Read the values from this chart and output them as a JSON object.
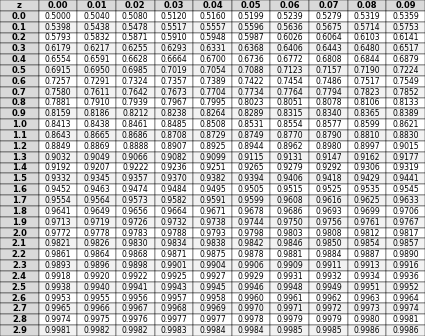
{
  "col_headers": [
    "z",
    "0.00",
    "0.01",
    "0.02",
    "0.03",
    "0.04",
    "0.05",
    "0.06",
    "0.07",
    "0.08",
    "0.09"
  ],
  "row_headers": [
    "0.0",
    "0.1",
    "0.2",
    "0.3",
    "0.4",
    "0.5",
    "0.6",
    "0.7",
    "0.8",
    "0.9",
    "1.0",
    "1.1",
    "1.2",
    "1.3",
    "1.4",
    "1.5",
    "1.6",
    "1.7",
    "1.8",
    "1.9",
    "2.0",
    "2.1",
    "2.2",
    "2.3",
    "2.4",
    "2.5",
    "2.6",
    "2.7",
    "2.8",
    "2.9"
  ],
  "table_data": [
    [
      0.5,
      0.504,
      0.508,
      0.512,
      0.516,
      0.5199,
      0.5239,
      0.5279,
      0.5319,
      0.5359
    ],
    [
      0.5398,
      0.5438,
      0.5478,
      0.5517,
      0.5557,
      0.5596,
      0.5636,
      0.5675,
      0.5714,
      0.5753
    ],
    [
      0.5793,
      0.5832,
      0.5871,
      0.591,
      0.5948,
      0.5987,
      0.6026,
      0.6064,
      0.6103,
      0.6141
    ],
    [
      0.6179,
      0.6217,
      0.6255,
      0.6293,
      0.6331,
      0.6368,
      0.6406,
      0.6443,
      0.648,
      0.6517
    ],
    [
      0.6554,
      0.6591,
      0.6628,
      0.6664,
      0.67,
      0.6736,
      0.6772,
      0.6808,
      0.6844,
      0.6879
    ],
    [
      0.6915,
      0.695,
      0.6985,
      0.7019,
      0.7054,
      0.7088,
      0.7123,
      0.7157,
      0.719,
      0.7224
    ],
    [
      0.7257,
      0.7291,
      0.7324,
      0.7357,
      0.7389,
      0.7422,
      0.7454,
      0.7486,
      0.7517,
      0.7549
    ],
    [
      0.758,
      0.7611,
      0.7642,
      0.7673,
      0.7704,
      0.7734,
      0.7764,
      0.7794,
      0.7823,
      0.7852
    ],
    [
      0.7881,
      0.791,
      0.7939,
      0.7967,
      0.7995,
      0.8023,
      0.8051,
      0.8078,
      0.8106,
      0.8133
    ],
    [
      0.8159,
      0.8186,
      0.8212,
      0.8238,
      0.8264,
      0.8289,
      0.8315,
      0.834,
      0.8365,
      0.8389
    ],
    [
      0.8413,
      0.8438,
      0.8461,
      0.8485,
      0.8508,
      0.8531,
      0.8554,
      0.8577,
      0.8599,
      0.8621
    ],
    [
      0.8643,
      0.8665,
      0.8686,
      0.8708,
      0.8729,
      0.8749,
      0.877,
      0.879,
      0.881,
      0.883
    ],
    [
      0.8849,
      0.8869,
      0.8888,
      0.8907,
      0.8925,
      0.8944,
      0.8962,
      0.898,
      0.8997,
      0.9015
    ],
    [
      0.9032,
      0.9049,
      0.9066,
      0.9082,
      0.9099,
      0.9115,
      0.9131,
      0.9147,
      0.9162,
      0.9177
    ],
    [
      0.9192,
      0.9207,
      0.9222,
      0.9236,
      0.9251,
      0.9265,
      0.9279,
      0.9292,
      0.9306,
      0.9319
    ],
    [
      0.9332,
      0.9345,
      0.9357,
      0.937,
      0.9382,
      0.9394,
      0.9406,
      0.9418,
      0.9429,
      0.9441
    ],
    [
      0.9452,
      0.9463,
      0.9474,
      0.9484,
      0.9495,
      0.9505,
      0.9515,
      0.9525,
      0.9535,
      0.9545
    ],
    [
      0.9554,
      0.9564,
      0.9573,
      0.9582,
      0.9591,
      0.9599,
      0.9608,
      0.9616,
      0.9625,
      0.9633
    ],
    [
      0.9641,
      0.9649,
      0.9656,
      0.9664,
      0.9671,
      0.9678,
      0.9686,
      0.9693,
      0.9699,
      0.9706
    ],
    [
      0.9713,
      0.9719,
      0.9726,
      0.9732,
      0.9738,
      0.9744,
      0.975,
      0.9756,
      0.9761,
      0.9767
    ],
    [
      0.9772,
      0.9778,
      0.9783,
      0.9788,
      0.9793,
      0.9798,
      0.9803,
      0.9808,
      0.9812,
      0.9817
    ],
    [
      0.9821,
      0.9826,
      0.983,
      0.9834,
      0.9838,
      0.9842,
      0.9846,
      0.985,
      0.9854,
      0.9857
    ],
    [
      0.9861,
      0.9864,
      0.9868,
      0.9871,
      0.9875,
      0.9878,
      0.9881,
      0.9884,
      0.9887,
      0.989
    ],
    [
      0.9893,
      0.9896,
      0.9898,
      0.9901,
      0.9904,
      0.9906,
      0.9909,
      0.9911,
      0.9913,
      0.9916
    ],
    [
      0.9918,
      0.992,
      0.9922,
      0.9925,
      0.9927,
      0.9929,
      0.9931,
      0.9932,
      0.9934,
      0.9936
    ],
    [
      0.9938,
      0.994,
      0.9941,
      0.9943,
      0.9945,
      0.9946,
      0.9948,
      0.9949,
      0.9951,
      0.9952
    ],
    [
      0.9953,
      0.9955,
      0.9956,
      0.9957,
      0.9958,
      0.996,
      0.9961,
      0.9962,
      0.9963,
      0.9964
    ],
    [
      0.9965,
      0.9966,
      0.9967,
      0.9968,
      0.9969,
      0.997,
      0.9971,
      0.9972,
      0.9973,
      0.9974
    ],
    [
      0.9974,
      0.9975,
      0.9976,
      0.9977,
      0.9977,
      0.9978,
      0.9979,
      0.9979,
      0.998,
      0.9981
    ],
    [
      0.9981,
      0.9982,
      0.9982,
      0.9983,
      0.9984,
      0.9984,
      0.9985,
      0.9985,
      0.9986,
      0.9986
    ]
  ],
  "header_bg": "#d9d9d9",
  "row_bg_odd": "#ffffff",
  "row_bg_even": "#f2f2f2",
  "border_color": "#000000",
  "font_size": 5.5,
  "header_font_size": 6.0,
  "fig_width": 4.25,
  "fig_height": 3.36,
  "dpi": 100
}
